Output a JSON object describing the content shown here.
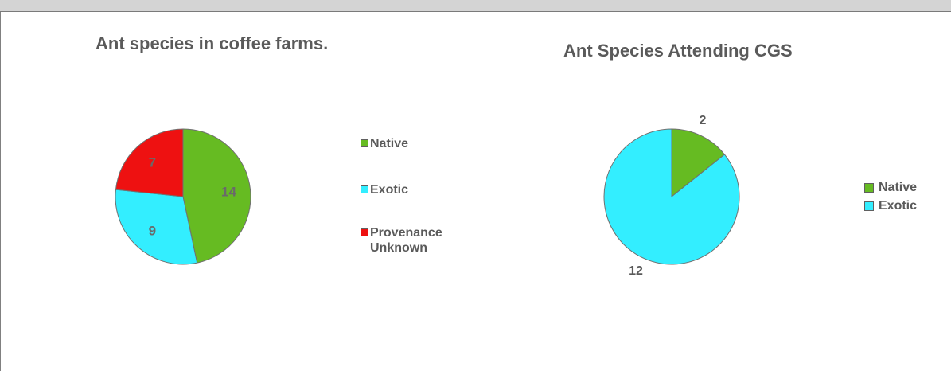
{
  "chart_data": [
    {
      "type": "pie",
      "title": "Ant species in coffee farms.",
      "categories": [
        "Native",
        "Exotic",
        "Provenance Unknown"
      ],
      "values": [
        14,
        9,
        7
      ],
      "colors": [
        "#66bb22",
        "#33eeff",
        "#ee1111"
      ],
      "data_labels": [
        "14",
        "9",
        "7"
      ],
      "legend_position": "right"
    },
    {
      "type": "pie",
      "title": "Ant Species Attending CGS",
      "categories": [
        "Native",
        "Exotic"
      ],
      "values": [
        2,
        12
      ],
      "colors": [
        "#66bb22",
        "#33eeff"
      ],
      "data_labels": [
        "2",
        "12"
      ],
      "legend_position": "right"
    }
  ]
}
